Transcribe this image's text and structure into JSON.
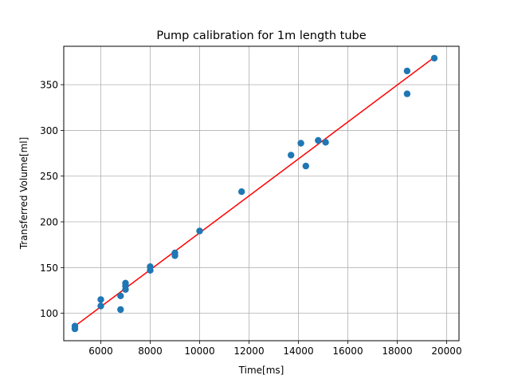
{
  "chart_data": {
    "type": "scatter",
    "title": "Pump calibration for 1m length tube",
    "xlabel": "Time[ms]",
    "ylabel": "Transferred Volume[ml]",
    "xlim": [
      4500,
      20500
    ],
    "ylim": [
      70,
      392
    ],
    "xticks": [
      6000,
      8000,
      10000,
      12000,
      14000,
      16000,
      18000,
      20000
    ],
    "yticks": [
      100,
      150,
      200,
      250,
      300,
      350
    ],
    "grid": true,
    "series": [
      {
        "kind": "scatter",
        "color": "#1f77b4",
        "points": [
          {
            "x": 4950,
            "y": 86
          },
          {
            "x": 4950,
            "y": 83
          },
          {
            "x": 6000,
            "y": 115
          },
          {
            "x": 6000,
            "y": 108
          },
          {
            "x": 6800,
            "y": 119
          },
          {
            "x": 6800,
            "y": 104
          },
          {
            "x": 7000,
            "y": 133
          },
          {
            "x": 7000,
            "y": 130
          },
          {
            "x": 7000,
            "y": 126
          },
          {
            "x": 8000,
            "y": 151
          },
          {
            "x": 8000,
            "y": 147
          },
          {
            "x": 9000,
            "y": 166
          },
          {
            "x": 9000,
            "y": 163
          },
          {
            "x": 10000,
            "y": 190
          },
          {
            "x": 11700,
            "y": 233
          },
          {
            "x": 13700,
            "y": 273
          },
          {
            "x": 14100,
            "y": 286
          },
          {
            "x": 14300,
            "y": 261
          },
          {
            "x": 14800,
            "y": 289
          },
          {
            "x": 15100,
            "y": 287
          },
          {
            "x": 18400,
            "y": 365
          },
          {
            "x": 18400,
            "y": 340
          },
          {
            "x": 19500,
            "y": 379
          }
        ]
      },
      {
        "kind": "line",
        "color": "#ff0000",
        "points": [
          {
            "x": 4950,
            "y": 86
          },
          {
            "x": 19500,
            "y": 380
          }
        ]
      }
    ]
  }
}
